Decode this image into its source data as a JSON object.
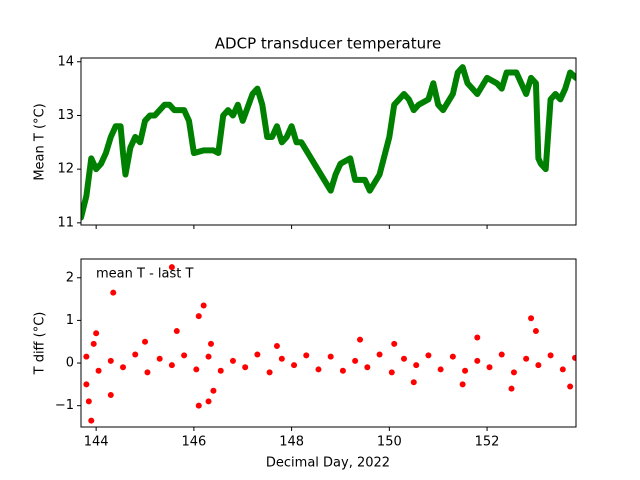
{
  "chart_data": [
    {
      "type": "line",
      "title": "ADCP transducer temperature",
      "ylabel": "Mean T (°C)",
      "xlim": [
        143.69,
        153.82
      ],
      "xticks": [
        144,
        146,
        148,
        150,
        152
      ],
      "ylim": [
        10.96,
        14.07
      ],
      "yticks": [
        11,
        12,
        13,
        14
      ],
      "x": [
        143.69,
        143.8,
        143.9,
        144.0,
        144.1,
        144.2,
        144.3,
        144.4,
        144.5,
        144.55,
        144.6,
        144.7,
        144.8,
        144.9,
        145.0,
        145.1,
        145.2,
        145.3,
        145.4,
        145.5,
        145.6,
        145.8,
        145.9,
        146.0,
        146.2,
        146.4,
        146.5,
        146.6,
        146.7,
        146.8,
        146.9,
        147.0,
        147.2,
        147.3,
        147.4,
        147.5,
        147.6,
        147.7,
        147.8,
        147.9,
        148.0,
        148.1,
        148.2,
        148.4,
        148.6,
        148.8,
        148.9,
        149.0,
        149.2,
        149.3,
        149.5,
        149.6,
        149.8,
        150.0,
        150.1,
        150.3,
        150.4,
        150.5,
        150.6,
        150.8,
        150.9,
        151.0,
        151.1,
        151.3,
        151.4,
        151.5,
        151.6,
        151.7,
        151.8,
        152.0,
        152.2,
        152.3,
        152.4,
        152.6,
        152.7,
        152.8,
        152.9,
        153.0,
        153.05,
        153.1,
        153.2,
        153.3,
        153.4,
        153.5,
        153.6,
        153.7,
        153.82
      ],
      "series": [
        {
          "color": "#008000",
          "values": [
            11.1,
            11.5,
            12.2,
            12.0,
            12.1,
            12.3,
            12.6,
            12.8,
            12.8,
            12.3,
            11.9,
            12.4,
            12.6,
            12.5,
            12.9,
            13.0,
            13.0,
            13.1,
            13.2,
            13.2,
            13.1,
            13.1,
            12.9,
            12.3,
            12.35,
            12.35,
            12.3,
            13.0,
            13.1,
            13.0,
            13.2,
            12.9,
            13.4,
            13.5,
            13.2,
            12.6,
            12.6,
            12.8,
            12.5,
            12.6,
            12.8,
            12.5,
            12.5,
            12.2,
            11.9,
            11.6,
            11.9,
            12.1,
            12.2,
            11.8,
            11.8,
            11.6,
            11.9,
            12.6,
            13.2,
            13.4,
            13.3,
            13.1,
            13.2,
            13.3,
            13.6,
            13.2,
            13.1,
            13.4,
            13.8,
            13.9,
            13.6,
            13.5,
            13.4,
            13.7,
            13.6,
            13.5,
            13.8,
            13.8,
            13.6,
            13.4,
            13.7,
            13.6,
            12.2,
            12.1,
            12.0,
            13.3,
            13.4,
            13.3,
            13.5,
            13.8,
            13.7
          ]
        }
      ]
    },
    {
      "type": "scatter",
      "xlabel": "Decimal Day, 2022",
      "ylabel": "T diff (°C)",
      "annotation": "mean T - last T",
      "xlim": [
        143.69,
        153.82
      ],
      "xticks": [
        144,
        146,
        148,
        150,
        152
      ],
      "ylim": [
        -1.5,
        2.44
      ],
      "yticks": [
        {
          "value": -1,
          "label": "−1"
        },
        0,
        1,
        2
      ],
      "x": [
        143.9,
        143.85,
        143.8,
        144.0,
        143.95,
        144.35,
        144.3,
        145.55,
        145.65,
        146.1,
        146.2,
        146.1,
        146.3,
        146.4,
        146.35,
        149.4,
        150.1,
        151.5,
        151.8,
        152.5,
        152.9,
        153.0,
        153.7,
        145.0,
        147.7,
        150.5,
        143.8,
        144.05,
        144.3,
        144.55,
        144.8,
        145.05,
        145.3,
        145.55,
        145.8,
        146.05,
        146.3,
        146.55,
        146.8,
        147.05,
        147.3,
        147.55,
        147.8,
        148.05,
        148.3,
        148.55,
        148.8,
        149.05,
        149.3,
        149.55,
        149.8,
        150.05,
        150.3,
        150.55,
        150.8,
        151.05,
        151.3,
        151.55,
        151.8,
        152.05,
        152.3,
        152.55,
        152.8,
        153.05,
        153.3,
        153.55,
        153.8
      ],
      "series": [
        {
          "color": "#ff0000",
          "values": [
            -1.35,
            -0.9,
            -0.5,
            0.7,
            0.45,
            1.65,
            -0.75,
            2.25,
            0.75,
            1.1,
            1.35,
            -1.0,
            -0.9,
            -0.65,
            0.45,
            0.55,
            0.45,
            -0.5,
            0.6,
            -0.6,
            1.05,
            0.75,
            -0.55,
            0.5,
            0.4,
            -0.45,
            0.15,
            -0.18,
            0.05,
            -0.1,
            0.2,
            -0.22,
            0.1,
            -0.05,
            0.18,
            -0.15,
            0.15,
            -0.18,
            0.05,
            -0.1,
            0.2,
            -0.22,
            0.1,
            -0.05,
            0.18,
            -0.15,
            0.15,
            -0.18,
            0.05,
            -0.1,
            0.2,
            -0.22,
            0.1,
            -0.05,
            0.18,
            -0.15,
            0.15,
            -0.18,
            0.05,
            -0.1,
            0.2,
            -0.22,
            0.1,
            -0.05,
            0.18,
            -0.15,
            0.12
          ]
        }
      ]
    }
  ]
}
